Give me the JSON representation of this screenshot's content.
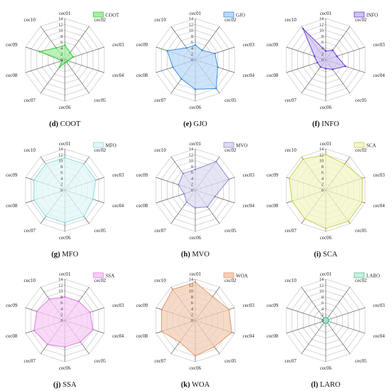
{
  "chart_data": [
    {
      "type": "radar",
      "panel_label": "(d)",
      "caption_name": "COOT",
      "legend": "COOT",
      "color": "#3cc83c",
      "fill": "#a6eea6",
      "axes": [
        "cec01",
        "cec02",
        "cec03",
        "cec04",
        "cec05",
        "cec06",
        "cec07",
        "cec08",
        "cec09",
        "cec10"
      ],
      "rlim": [
        0,
        14
      ],
      "ticks": [
        "0",
        "2",
        "4",
        "6",
        "8",
        "10",
        "12",
        "14"
      ],
      "values": [
        5,
        3,
        3,
        1,
        1,
        1,
        3,
        1,
        9,
        5
      ]
    },
    {
      "type": "radar",
      "panel_label": "(e)",
      "caption_name": "GJO",
      "legend": "GJO",
      "color": "#3d8fe0",
      "fill": "#bcdaf7",
      "axes": [
        "cec01",
        "cec02",
        "cec03",
        "cec04",
        "cec05",
        "cec06",
        "cec07",
        "cec08",
        "cec09",
        "cec10"
      ],
      "rlim": [
        0,
        14
      ],
      "ticks": [
        "0",
        "2",
        "4",
        "6",
        "8",
        "10",
        "12",
        "14"
      ],
      "values": [
        5,
        4,
        7,
        8,
        12,
        10,
        8,
        8,
        10,
        5
      ]
    },
    {
      "type": "radar",
      "panel_label": "(f)",
      "caption_name": "INFO",
      "legend": "INFO",
      "color": "#6b3fd8",
      "fill": "#cfc3f3",
      "axes": [
        "cec01",
        "cec02",
        "cec03",
        "cec04",
        "cec05",
        "cec06",
        "cec07",
        "cec08",
        "cec09",
        "cec10"
      ],
      "rlim": [
        0,
        14
      ],
      "ticks": [
        "0",
        "2",
        "4",
        "6",
        "8",
        "10",
        "12",
        "14"
      ],
      "values": [
        3,
        4,
        4,
        7,
        4,
        3,
        3,
        3,
        4,
        13
      ]
    },
    {
      "type": "radar",
      "panel_label": "(g)",
      "caption_name": "MFO",
      "legend": "MFO",
      "color": "#8adbe2",
      "fill": "#e2f7f8",
      "axes": [
        "cec01",
        "cec02",
        "cec03",
        "cec04",
        "cec05",
        "cec06",
        "cec07",
        "cec08",
        "cec09",
        "cec10"
      ],
      "rlim": [
        0,
        14
      ],
      "ticks": [
        "0",
        "2",
        "4",
        "6",
        "8",
        "10",
        "12",
        "14"
      ],
      "values": [
        11,
        11,
        11,
        10,
        11,
        11,
        11,
        11,
        11,
        11
      ]
    },
    {
      "type": "radar",
      "panel_label": "(h)",
      "caption_name": "MVO",
      "legend": "MVO",
      "color": "#8c8ed6",
      "fill": "#dcdcf3",
      "axes": [
        "cec01",
        "cec02",
        "cec03",
        "cec04",
        "cec05",
        "cec06",
        "cec07",
        "cec08",
        "cec09",
        "cec10"
      ],
      "rlim": [
        0,
        14
      ],
      "ticks": [
        "0",
        "2",
        "4",
        "6",
        "8",
        "10",
        "12",
        "14"
      ],
      "values": [
        7,
        12,
        12,
        7,
        7,
        6,
        5,
        4,
        6,
        7
      ]
    },
    {
      "type": "radar",
      "panel_label": "(i)",
      "caption_name": "SCA",
      "legend": "SCA",
      "color": "#c8cf52",
      "fill": "#f3f5c6",
      "axes": [
        "cec01",
        "cec02",
        "cec03",
        "cec04",
        "cec05",
        "cec06",
        "cec07",
        "cec08",
        "cec09",
        "cec10"
      ],
      "rlim": [
        0,
        14
      ],
      "ticks": [
        "0",
        "2",
        "4",
        "6",
        "8",
        "10",
        "12",
        "14"
      ],
      "values": [
        12,
        11,
        13,
        13,
        13,
        13,
        12,
        12,
        13,
        13
      ]
    },
    {
      "type": "radar",
      "panel_label": "(j)",
      "caption_name": "SSA",
      "legend": "SSA",
      "color": "#e07fe0",
      "fill": "#f6ccf6",
      "axes": [
        "cec01",
        "cec02",
        "cec03",
        "cec04",
        "cec05",
        "cec06",
        "cec07",
        "cec08",
        "cec09",
        "cec10"
      ],
      "rlim": [
        0,
        14
      ],
      "ticks": [
        "0",
        "2",
        "4",
        "6",
        "8",
        "10",
        "12",
        "14"
      ],
      "values": [
        8,
        8,
        9,
        10,
        9,
        9,
        10,
        11,
        10,
        9
      ]
    },
    {
      "type": "radar",
      "panel_label": "(k)",
      "caption_name": "WOA",
      "legend": "WOA",
      "color": "#e09a6e",
      "fill": "#f3cdb5",
      "axes": [
        "cec01",
        "cec02",
        "cec03",
        "cec04",
        "cec05",
        "cec06",
        "cec07",
        "cec08",
        "cec09",
        "cec10"
      ],
      "rlim": [
        0,
        14
      ],
      "ticks": [
        "0",
        "2",
        "4",
        "6",
        "8",
        "10",
        "12",
        "14"
      ],
      "values": [
        13,
        10,
        12,
        13,
        11,
        12,
        9,
        12,
        12,
        13
      ]
    },
    {
      "type": "radar",
      "panel_label": "(l)",
      "caption_name": "LARO",
      "legend": "LARO",
      "color": "#5ac89a",
      "fill": "#c8efdf",
      "axes": [
        "cec01",
        "cec02",
        "cec03",
        "cec04",
        "cec05",
        "cec06",
        "cec07",
        "cec08",
        "cec09",
        "cec10"
      ],
      "rlim": [
        0,
        14
      ],
      "ticks": [
        "0",
        "2",
        "4",
        "6",
        "8",
        "10",
        "12",
        "14"
      ],
      "values": [
        1,
        1,
        1,
        1,
        1,
        1,
        1,
        1,
        1,
        1
      ]
    }
  ]
}
